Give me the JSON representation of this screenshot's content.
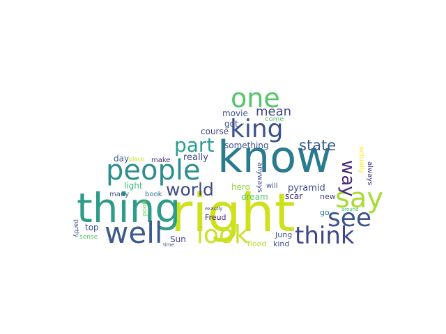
{
  "words": [
    {
      "text": "know",
      "color": "#2a7b8e"
    },
    {
      "text": "right",
      "color": "#cde11d"
    },
    {
      "text": "thing",
      "color": "#2f9c89"
    },
    {
      "text": "people",
      "color": "#2d8f8c"
    },
    {
      "text": "well",
      "color": "#3d5a8c"
    },
    {
      "text": "say",
      "color": "#a8db34"
    },
    {
      "text": "see",
      "color": "#3b528b"
    },
    {
      "text": "look",
      "color": "#cddf2a"
    },
    {
      "text": "think",
      "color": "#3f4788"
    },
    {
      "text": "one",
      "color": "#55c667"
    },
    {
      "text": "king",
      "color": "#3b528b"
    },
    {
      "text": "part",
      "color": "#2a9d8f"
    },
    {
      "text": "world",
      "color": "#3e4a89"
    },
    {
      "text": "way",
      "color": "#482677"
    },
    {
      "text": "state",
      "color": "#38598c"
    },
    {
      "text": "mean",
      "color": "#3f4788"
    },
    {
      "text": "movie",
      "color": "#38588c"
    },
    {
      "text": "got",
      "color": "#3b528b"
    },
    {
      "text": "come",
      "color": "#55c667"
    },
    {
      "text": "course",
      "color": "#3f4788"
    },
    {
      "text": "something",
      "color": "#3b528b"
    },
    {
      "text": "really",
      "color": "#3e4989"
    },
    {
      "text": "day",
      "color": "#35608d"
    },
    {
      "text": "place",
      "color": "#cde11d"
    },
    {
      "text": "make",
      "color": "#482677"
    },
    {
      "text": "light",
      "color": "#3cbc74"
    },
    {
      "text": "many",
      "color": "#3b528b"
    },
    {
      "text": "book",
      "color": "#2d708e"
    },
    {
      "text": "hero",
      "color": "#8fd744"
    },
    {
      "text": "dream",
      "color": "#55c667"
    },
    {
      "text": "pyramid",
      "color": "#3e4a89"
    },
    {
      "text": "scar",
      "color": "#482677"
    },
    {
      "text": "will",
      "color": "#3b528b"
    },
    {
      "text": "anyways",
      "color": "#3e4a89"
    },
    {
      "text": "actually",
      "color": "#fde725"
    },
    {
      "text": "always",
      "color": "#46337f"
    },
    {
      "text": "new",
      "color": "#3e4a89"
    },
    {
      "text": "go",
      "color": "#2c728e"
    },
    {
      "text": "around",
      "color": "#3cbc74"
    },
    {
      "text": "top",
      "color": "#3e4a89"
    },
    {
      "text": "Freud",
      "color": "#482677"
    },
    {
      "text": "exactly",
      "color": "#3e4a89"
    },
    {
      "text": "good",
      "color": "#6ece58"
    },
    {
      "text": "partly",
      "color": "#3b528b"
    },
    {
      "text": "sense",
      "color": "#55c667"
    },
    {
      "text": "Sun",
      "color": "#3e4a89"
    },
    {
      "text": "time",
      "color": "#3e4a89"
    },
    {
      "text": "Jung",
      "color": "#38588c"
    },
    {
      "text": "flood",
      "color": "#b5de2b"
    },
    {
      "text": "kind",
      "color": "#3b528b"
    }
  ]
}
